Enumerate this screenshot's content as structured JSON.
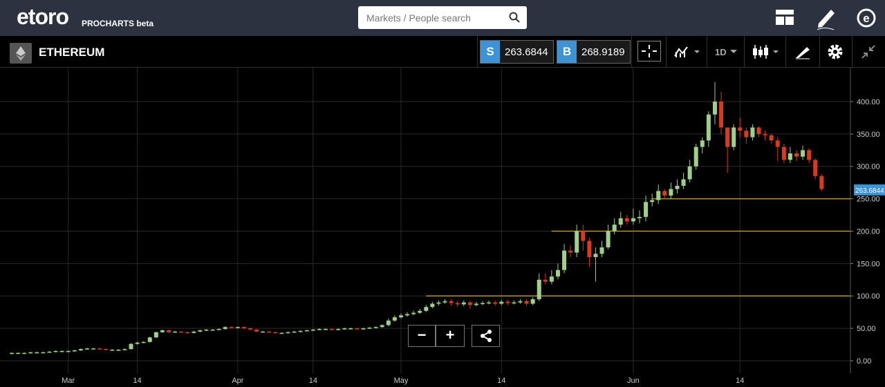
{
  "header": {
    "logo": "etoro",
    "product": "PROCHARTS beta",
    "search_placeholder": "Markets / People search"
  },
  "toolbar": {
    "instrument": "ETHEREUM",
    "sell_label": "S",
    "sell_price": "263.6844",
    "buy_label": "B",
    "buy_price": "268.9189",
    "timeframe": "1D"
  },
  "controls": {
    "zoom_out": "−",
    "zoom_in": "+"
  },
  "chart_data": {
    "type": "candlestick",
    "categories": [
      null,
      null,
      null,
      null,
      null,
      null,
      null,
      null,
      null,
      "Mar",
      null,
      null,
      null,
      null,
      null,
      null,
      null,
      null,
      null,
      null,
      "14",
      null,
      null,
      null,
      null,
      null,
      null,
      null,
      null,
      null,
      null,
      null,
      null,
      null,
      null,
      null,
      "Apr",
      null,
      null,
      null,
      null,
      null,
      null,
      null,
      null,
      null,
      null,
      null,
      "14",
      null,
      null,
      null,
      null,
      null,
      null,
      null,
      null,
      null,
      null,
      null,
      null,
      null,
      "May",
      null,
      null,
      null,
      null,
      null,
      null,
      null,
      null,
      null,
      null,
      null,
      null,
      null,
      null,
      null,
      "14",
      null,
      null,
      null,
      null,
      null,
      null,
      null,
      null,
      null,
      null,
      null,
      null,
      null,
      null,
      null,
      null,
      null,
      null,
      null,
      null,
      "Jun",
      null,
      null,
      null,
      null,
      null,
      null,
      null,
      null,
      null,
      null,
      null,
      null,
      null,
      null,
      null,
      null,
      "14",
      null,
      null,
      null,
      null,
      null,
      null,
      null,
      null,
      null,
      null,
      null,
      null,
      null
    ],
    "open": [
      11,
      12,
      12,
      12,
      13,
      13,
      13,
      14,
      15,
      15,
      15,
      16,
      18,
      19,
      19,
      18,
      17,
      17,
      17,
      18,
      26,
      28,
      29,
      36,
      44,
      47,
      44,
      45,
      44,
      43,
      45,
      47,
      48,
      48,
      49,
      52,
      51,
      52,
      50,
      48,
      45,
      45,
      44,
      43,
      43,
      44,
      45,
      46,
      47,
      48,
      49,
      49,
      48,
      49,
      50,
      50,
      49,
      50,
      51,
      52,
      55,
      62,
      67,
      70,
      72,
      74,
      77,
      83,
      88,
      90,
      92,
      89,
      87,
      90,
      86,
      88,
      89,
      90,
      88,
      91,
      89,
      90,
      92,
      88,
      95,
      125,
      122,
      130,
      140,
      170,
      167,
      200,
      185,
      160,
      165,
      175,
      200,
      210,
      220,
      215,
      220,
      222,
      245,
      248,
      262,
      255,
      265,
      270,
      280,
      300,
      330,
      340,
      380,
      400,
      360,
      330,
      360,
      355,
      345,
      360,
      350,
      348,
      340,
      330,
      310,
      320,
      315,
      325,
      310,
      285
    ],
    "high": [
      13,
      13,
      13,
      14,
      14,
      14,
      15,
      16,
      16,
      16,
      17,
      19,
      20,
      20,
      20,
      19,
      18,
      18,
      19,
      27,
      29,
      30,
      37,
      45,
      48,
      48,
      46,
      46,
      45,
      46,
      48,
      49,
      49,
      50,
      53,
      53,
      53,
      53,
      51,
      49,
      46,
      46,
      45,
      44,
      45,
      46,
      47,
      48,
      49,
      50,
      50,
      50,
      50,
      51,
      51,
      51,
      51,
      52,
      53,
      56,
      65,
      70,
      73,
      75,
      77,
      80,
      86,
      91,
      93,
      95,
      95,
      92,
      93,
      93,
      91,
      92,
      93,
      93,
      94,
      94,
      93,
      95,
      95,
      98,
      135,
      135,
      140,
      150,
      180,
      178,
      210,
      210,
      190,
      175,
      185,
      210,
      220,
      230,
      225,
      235,
      232,
      255,
      258,
      272,
      265,
      275,
      280,
      290,
      310,
      335,
      345,
      385,
      430,
      415,
      360,
      365,
      375,
      360,
      365,
      362,
      355,
      350,
      345,
      335,
      330,
      325,
      332,
      328,
      312,
      288
    ],
    "low": [
      10,
      11,
      11,
      11,
      12,
      12,
      12,
      13,
      14,
      14,
      14,
      15,
      17,
      18,
      17,
      16,
      16,
      16,
      16,
      17,
      25,
      27,
      28,
      35,
      43,
      43,
      43,
      43,
      42,
      42,
      44,
      46,
      47,
      47,
      48,
      50,
      50,
      49,
      47,
      44,
      44,
      43,
      42,
      42,
      42,
      43,
      44,
      45,
      46,
      47,
      48,
      47,
      47,
      48,
      49,
      48,
      48,
      49,
      50,
      51,
      53,
      60,
      65,
      68,
      70,
      72,
      75,
      81,
      85,
      88,
      85,
      83,
      84,
      80,
      84,
      86,
      87,
      85,
      86,
      86,
      87,
      88,
      85,
      86,
      92,
      118,
      118,
      126,
      135,
      160,
      160,
      170,
      145,
      122,
      160,
      172,
      195,
      205,
      210,
      210,
      212,
      215,
      238,
      242,
      250,
      250,
      258,
      265,
      275,
      295,
      320,
      330,
      365,
      350,
      290,
      325,
      345,
      335,
      340,
      345,
      340,
      335,
      308,
      305,
      305,
      308,
      310,
      305,
      280,
      262
    ],
    "close": [
      12,
      12,
      12,
      13,
      13,
      13,
      14,
      15,
      15,
      15,
      16,
      18,
      19,
      19,
      18,
      17,
      17,
      17,
      18,
      26,
      28,
      29,
      36,
      44,
      47,
      44,
      45,
      44,
      43,
      45,
      47,
      48,
      48,
      49,
      52,
      51,
      52,
      50,
      48,
      45,
      45,
      44,
      43,
      43,
      44,
      45,
      46,
      47,
      48,
      49,
      49,
      48,
      49,
      50,
      50,
      49,
      50,
      51,
      52,
      55,
      62,
      67,
      70,
      72,
      74,
      77,
      83,
      88,
      90,
      92,
      89,
      87,
      90,
      86,
      88,
      89,
      90,
      88,
      91,
      89,
      90,
      92,
      88,
      95,
      125,
      122,
      130,
      140,
      170,
      167,
      200,
      185,
      160,
      165,
      175,
      200,
      210,
      220,
      215,
      220,
      222,
      245,
      248,
      262,
      255,
      265,
      270,
      280,
      300,
      330,
      340,
      380,
      400,
      360,
      330,
      360,
      355,
      345,
      360,
      350,
      348,
      340,
      330,
      310,
      320,
      315,
      325,
      310,
      285,
      265
    ],
    "up_color": "#9fd08a",
    "down_color": "#d93a1c",
    "ylim": [
      -19.2,
      453.3
    ],
    "yticks": [
      {
        "value": 0,
        "label": "0.00"
      },
      {
        "value": 50,
        "label": "50.00"
      },
      {
        "value": 100,
        "label": "100.00"
      },
      {
        "value": 150,
        "label": "150.00"
      },
      {
        "value": 200,
        "label": "200.00"
      },
      {
        "value": 250,
        "label": "250.00"
      },
      {
        "value": 300,
        "label": "300.00"
      },
      {
        "value": 350,
        "label": "350.00"
      },
      {
        "value": 400,
        "label": "400.00"
      }
    ],
    "grid": true,
    "levels": [
      {
        "value": 250,
        "from": 102
      },
      {
        "value": 200,
        "from": 86
      },
      {
        "value": 100,
        "from": 66
      }
    ],
    "level_color": "#b8962e",
    "last_price": 263.6844,
    "last_price_color": "#3d93d6"
  }
}
